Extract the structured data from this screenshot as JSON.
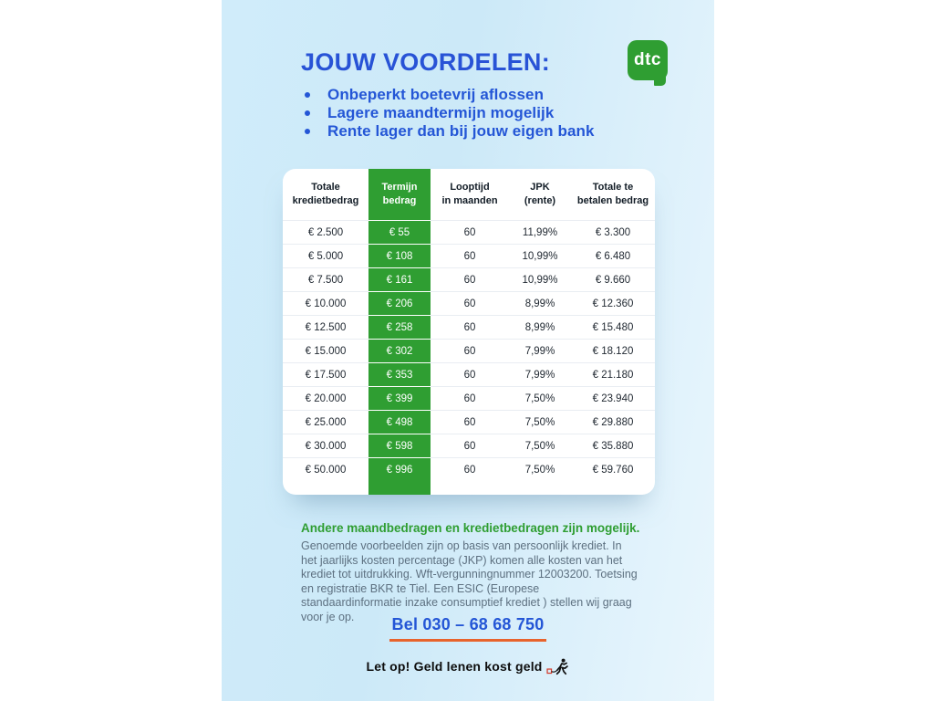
{
  "header": {
    "title": "JOUW VOORDELEN:",
    "bullets": [
      "Onbeperkt boetevrij aflossen",
      "Lagere maandtermijn mogelijk",
      "Rente lager dan bij jouw eigen bank"
    ]
  },
  "logo": {
    "text": "dtc"
  },
  "table": {
    "columns": [
      {
        "line1": "Totale",
        "line2": "kredietbedrag",
        "highlight": false
      },
      {
        "line1": "Termijn",
        "line2": "bedrag",
        "highlight": true
      },
      {
        "line1": "Looptijd",
        "line2": "in maanden",
        "highlight": false
      },
      {
        "line1": "JPK",
        "line2": "(rente)",
        "highlight": false
      },
      {
        "line1": "Totale te",
        "line2": "betalen bedrag",
        "highlight": false
      }
    ],
    "rows": [
      [
        "€ 2.500",
        "€ 55",
        "60",
        "11,99%",
        "€ 3.300"
      ],
      [
        "€ 5.000",
        "€ 108",
        "60",
        "10,99%",
        "€ 6.480"
      ],
      [
        "€ 7.500",
        "€ 161",
        "60",
        "10,99%",
        "€ 9.660"
      ],
      [
        "€ 10.000",
        "€ 206",
        "60",
        "8,99%",
        "€ 12.360"
      ],
      [
        "€ 12.500",
        "€ 258",
        "60",
        "8,99%",
        "€ 15.480"
      ],
      [
        "€ 15.000",
        "€ 302",
        "60",
        "7,99%",
        "€ 18.120"
      ],
      [
        "€ 17.500",
        "€ 353",
        "60",
        "7,99%",
        "€ 21.180"
      ],
      [
        "€ 20.000",
        "€ 399",
        "60",
        "7,50%",
        "€ 23.940"
      ],
      [
        "€ 25.000",
        "€ 498",
        "60",
        "7,50%",
        "€ 29.880"
      ],
      [
        "€ 30.000",
        "€ 598",
        "60",
        "7,50%",
        "€ 35.880"
      ],
      [
        "€ 50.000",
        "€ 996",
        "60",
        "7,50%",
        "€ 59.760"
      ]
    ]
  },
  "footer": {
    "highlight": "Andere maandbedragen en kredietbedragen zijn mogelijk.",
    "disclaimer": "Genoemde voorbeelden zijn op basis van persoonlijk krediet. In het jaarlijks kosten percentage (JKP) komen alle kosten van het krediet tot uitdrukking. Wft-vergunningnummer 12003200. Toetsing en registratie BKR te Tiel. Een ESIC (Europese standaardinformatie inzake consumptief krediet ) stellen wij graag voor je op.",
    "phone": "Bel 030 – 68 68 750",
    "warning": "Let op! Geld lenen kost geld",
    "warning_icon": "money-burden-runner-icon"
  },
  "colors": {
    "brand_blue": "#2456d6",
    "brand_green": "#2f9e32",
    "underline_orange": "#e8632c",
    "canvas_blue": "#cce9f8"
  }
}
